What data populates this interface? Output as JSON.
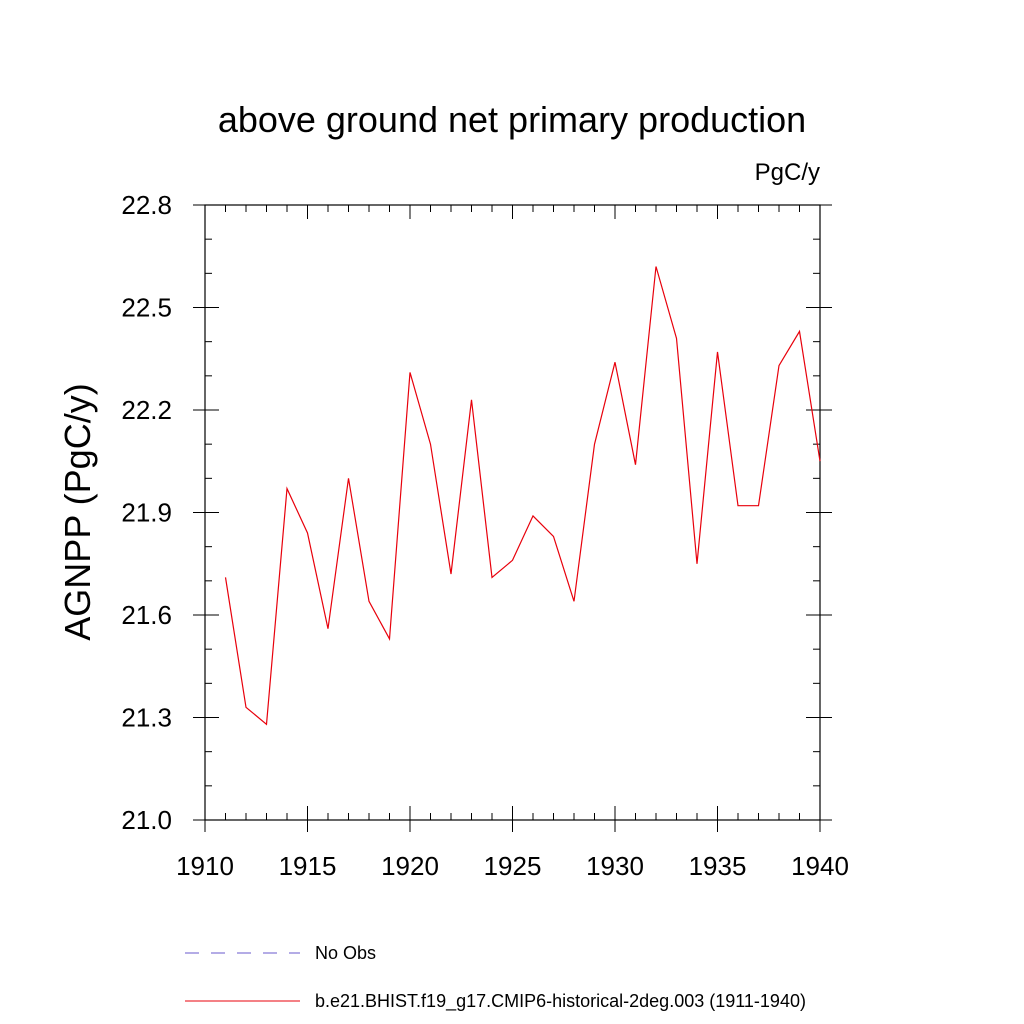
{
  "chart_data": {
    "type": "line",
    "title": "above ground net primary production",
    "units_label": "PgC/y",
    "ylabel": "AGNPP  (PgC/y)",
    "xlabel": "",
    "xlim": [
      1910,
      1940
    ],
    "ylim": [
      21.0,
      22.8
    ],
    "x_ticks": [
      "1910",
      "1915",
      "1920",
      "1925",
      "1930",
      "1935",
      "1940"
    ],
    "y_ticks": [
      "21.0",
      "21.3",
      "21.6",
      "21.9",
      "22.2",
      "22.5",
      "22.8"
    ],
    "grid": false,
    "legend_position": "bottom",
    "series": [
      {
        "name": "b.e21.BHIST.f19_g17.CMIP6-historical-2deg.003 (1911-1940)",
        "color": "#e8000b",
        "style": "solid",
        "x": [
          1911,
          1912,
          1913,
          1914,
          1915,
          1916,
          1917,
          1918,
          1919,
          1920,
          1921,
          1922,
          1923,
          1924,
          1925,
          1926,
          1927,
          1928,
          1929,
          1930,
          1931,
          1932,
          1933,
          1934,
          1935,
          1936,
          1937,
          1938,
          1939,
          1940
        ],
        "values": [
          21.71,
          21.33,
          21.28,
          21.97,
          21.84,
          21.56,
          22.0,
          21.64,
          21.53,
          22.31,
          22.1,
          21.72,
          22.23,
          21.71,
          21.76,
          21.89,
          21.83,
          21.64,
          22.1,
          22.34,
          22.04,
          22.62,
          22.41,
          21.75,
          22.37,
          21.92,
          21.92,
          22.33,
          22.43,
          22.05
        ]
      },
      {
        "name": "No Obs",
        "color": "#6a5acd",
        "style": "dashed",
        "x": [],
        "values": []
      }
    ]
  }
}
